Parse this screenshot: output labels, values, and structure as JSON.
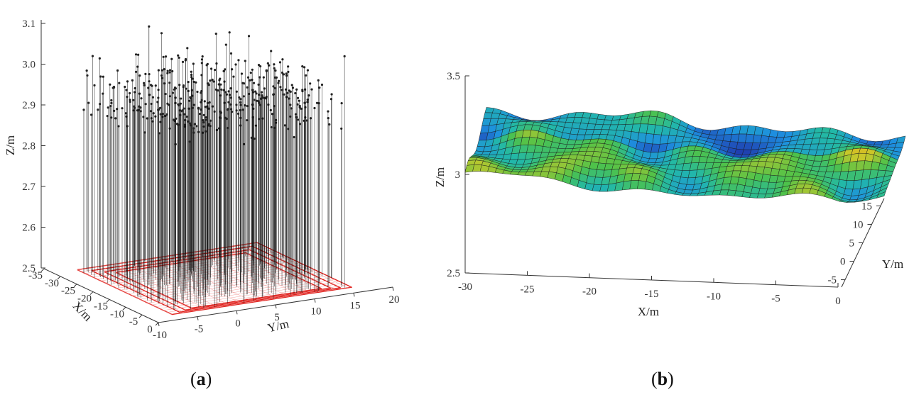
{
  "chart_data": [
    {
      "type": "scatter",
      "variant": "3d-stem",
      "panel_label": "a",
      "xlabel": "X/m",
      "ylabel": "Y/m",
      "zlabel": "Z/m",
      "x_ticks": [
        "-35",
        "-30",
        "-25",
        "-20",
        "-15",
        "-10",
        "-5",
        "0"
      ],
      "y_ticks": [
        "-10",
        "-5",
        "0",
        "5",
        "10",
        "15",
        "20"
      ],
      "z_ticks": [
        "2.5",
        "2.6",
        "2.7",
        "2.8",
        "2.9",
        "3.0",
        "3.1"
      ],
      "xlim": [
        -35,
        0
      ],
      "ylim": [
        -10,
        20
      ],
      "zlim": [
        2.5,
        3.1
      ],
      "stem_color": "#111111",
      "footprint_color": "#e0201c"
    },
    {
      "type": "surface",
      "panel_label": "b",
      "xlabel": "X/m",
      "ylabel": "Y/m",
      "zlabel": "Z/m",
      "x_ticks": [
        "-30",
        "-25",
        "-20",
        "-15",
        "-10",
        "-5",
        "0"
      ],
      "y_ticks": [
        "-5",
        "0",
        "5",
        "10",
        "15"
      ],
      "z_ticks": [
        "2.5",
        "3",
        "3.5"
      ],
      "xlim": [
        -30,
        0
      ],
      "ylim": [
        -7,
        17
      ],
      "zlim": [
        2.5,
        3.5
      ],
      "colormap": [
        "#1f3fb0",
        "#1e90e0",
        "#22b8a8",
        "#4ec24a",
        "#c8c82a",
        "#f0a818"
      ]
    }
  ]
}
